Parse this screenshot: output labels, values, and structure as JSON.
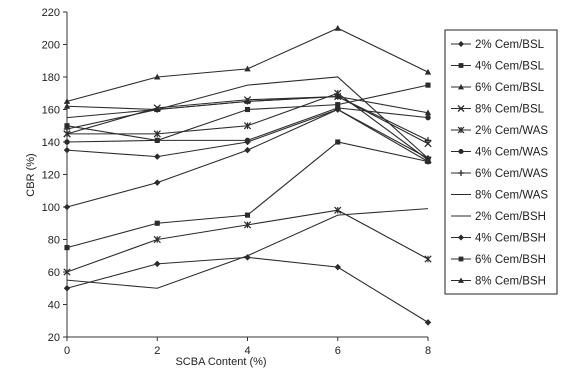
{
  "chart_data": {
    "type": "line",
    "xlabel": "SCBA Content (%)",
    "ylabel": "CBR (%)",
    "xlim": [
      0,
      8
    ],
    "ylim": [
      20,
      220
    ],
    "x": [
      0,
      2,
      4,
      6,
      8
    ],
    "xticks": [
      "0",
      "2",
      "4",
      "6",
      "8"
    ],
    "yticks": [
      "20",
      "40",
      "60",
      "80",
      "100",
      "120",
      "140",
      "160",
      "180",
      "200",
      "220"
    ],
    "grid": false,
    "legend_position": "right",
    "series": [
      {
        "name": "2% Cem/BSL",
        "marker": "diamond",
        "values": [
          135,
          131,
          140,
          160,
          128
        ]
      },
      {
        "name": "4% Cem/BSL",
        "marker": "square",
        "values": [
          150,
          141,
          160,
          163,
          175
        ]
      },
      {
        "name": "6% Cem/BSL",
        "marker": "triangle",
        "values": [
          162,
          160,
          165,
          168,
          158
        ]
      },
      {
        "name": "8% Cem/BSL",
        "marker": "x",
        "values": [
          145,
          161,
          166,
          168,
          139
        ]
      },
      {
        "name": "2% Cem/WAS",
        "marker": "asterisk",
        "values": [
          145,
          145,
          150,
          170,
          129
        ]
      },
      {
        "name": "4% Cem/WAS",
        "marker": "circle",
        "values": [
          140,
          141,
          141,
          161,
          155
        ]
      },
      {
        "name": "6% Cem/WAS",
        "marker": "plus",
        "values": [
          148,
          160,
          165,
          168,
          141
        ]
      },
      {
        "name": "8% Cem/WAS",
        "marker": "none",
        "values": [
          155,
          160,
          175,
          180,
          130
        ]
      },
      {
        "name": "2% Cem/BSH",
        "marker": "none",
        "values": [
          55,
          50,
          70,
          95,
          99
        ]
      },
      {
        "name": "4% Cem/BSH",
        "marker": "diamond",
        "values": [
          100,
          115,
          135,
          160,
          130
        ]
      },
      {
        "name": "6% Cem/BSH",
        "marker": "square",
        "values": [
          75,
          90,
          95,
          140,
          128
        ]
      },
      {
        "name": "8% Cem/BSH",
        "marker": "triangle",
        "values": [
          165,
          180,
          185,
          210,
          183
        ]
      },
      {
        "name": "",
        "marker": "asterisk",
        "values": [
          60,
          80,
          89,
          98,
          68
        ]
      },
      {
        "name": "",
        "marker": "diamond",
        "values": [
          50,
          65,
          69,
          63,
          29
        ]
      }
    ],
    "colors": {
      "line": "#2b2b2b",
      "marker_fill": "#2b2b2b",
      "axis": "#333333",
      "legend_border": "#222222"
    }
  }
}
